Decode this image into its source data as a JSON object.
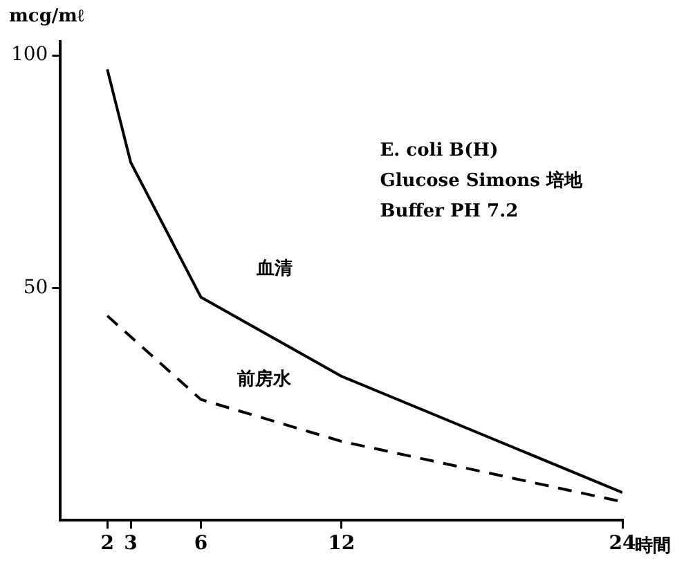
{
  "chart_data": {
    "type": "line",
    "ylabel": "mcg/mℓ",
    "xlabel": "時間",
    "xlim": [
      0,
      24
    ],
    "xticks": [
      2,
      3,
      6,
      12,
      24
    ],
    "ylim": [
      0,
      103
    ],
    "yticks": [
      50,
      100
    ],
    "grid": false,
    "legend": false,
    "marker": "none",
    "annotations": [
      "E. coli B(H)",
      "Glucose Simons 培地",
      "Buffer PH 7.2"
    ],
    "x": [
      2,
      3,
      6,
      12,
      24
    ],
    "series": [
      {
        "name": "血清",
        "color": "#000000",
        "line_style": "solid",
        "values": [
          97,
          77,
          48,
          31,
          6
        ]
      },
      {
        "name": "前房水",
        "color": "#000000",
        "line_style": "dashed",
        "x": [
          2,
          6,
          12,
          24
        ],
        "values": [
          44,
          26,
          17,
          4
        ]
      }
    ]
  }
}
